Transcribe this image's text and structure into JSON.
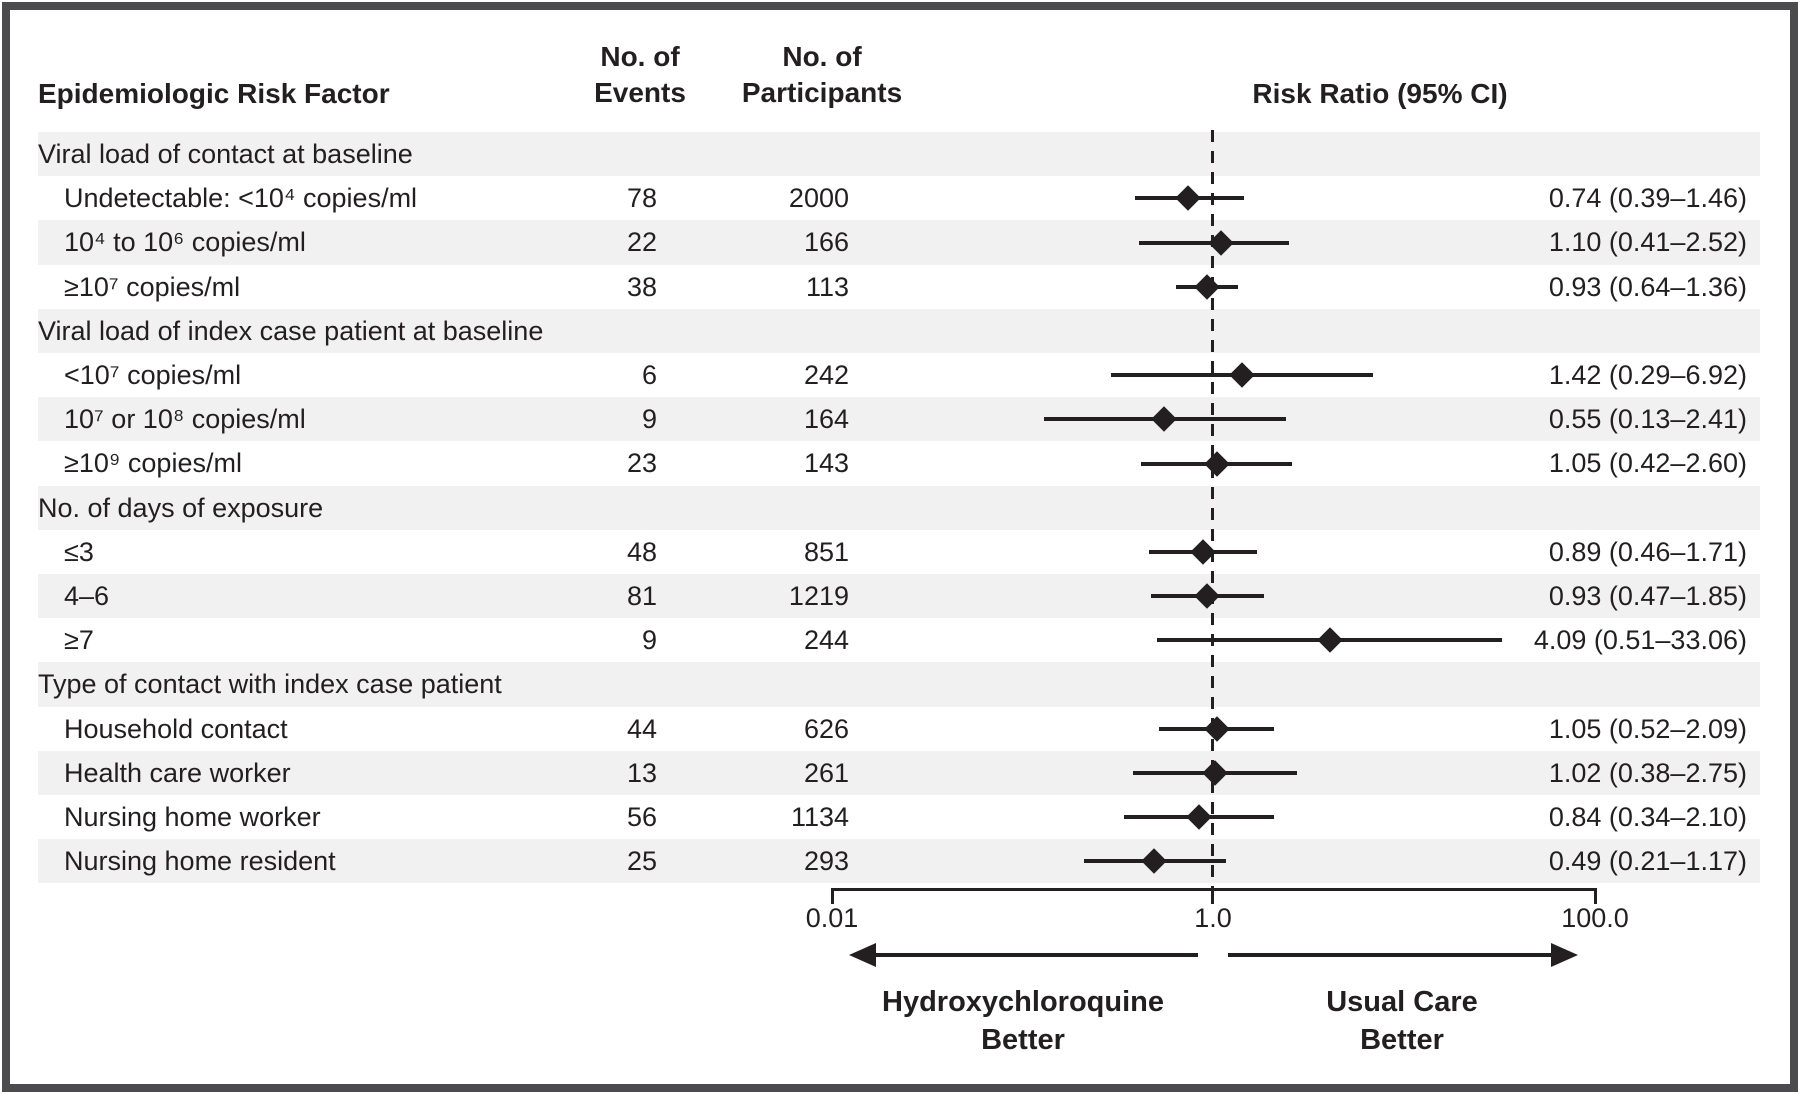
{
  "header": {
    "risk_factor": "Epidemiologic Risk Factor",
    "events_line1": "No. of",
    "events_line2": "Events",
    "participants_line1": "No. of",
    "participants_line2": "Participants",
    "risk_ratio": "Risk Ratio (95% CI)"
  },
  "chart_data": {
    "type": "scatter",
    "variant": "forest-plot",
    "title": "Risk Ratio (95% CI)",
    "x_scale": "log10",
    "xlim": [
      0.01,
      100.0
    ],
    "reference_line": 1.0,
    "x_ticks": [
      0.01,
      1.0,
      100.0
    ],
    "x_tick_labels": [
      "0.01",
      "1.0",
      "100.0"
    ],
    "columns": [
      "Epidemiologic Risk Factor",
      "No. of Events",
      "No. of Participants",
      "Risk Ratio (95% CI)"
    ],
    "rows": [
      {
        "group": true,
        "label": "Viral load of contact at baseline"
      },
      {
        "group": false,
        "label": "Undetectable: <10⁴ copies/ml",
        "events": "78",
        "participants": "2000",
        "rr": 0.74,
        "ci_low": 0.39,
        "ci_high": 1.46,
        "rr_text": "0.74 (0.39–1.46)"
      },
      {
        "group": false,
        "label": "10⁴ to 10⁶ copies/ml",
        "events": "22",
        "participants": "166",
        "rr": 1.1,
        "ci_low": 0.41,
        "ci_high": 2.52,
        "rr_text": "1.10 (0.41–2.52)"
      },
      {
        "group": false,
        "label": "≥10⁷ copies/ml",
        "events": "38",
        "participants": "113",
        "rr": 0.93,
        "ci_low": 0.64,
        "ci_high": 1.36,
        "rr_text": "0.93 (0.64–1.36)"
      },
      {
        "group": true,
        "label": "Viral load of index case patient at baseline"
      },
      {
        "group": false,
        "label": "<10⁷ copies/ml",
        "events": "6",
        "participants": "242",
        "rr": 1.42,
        "ci_low": 0.29,
        "ci_high": 6.92,
        "rr_text": "1.42 (0.29–6.92)"
      },
      {
        "group": false,
        "label": "10⁷ or 10⁸ copies/ml",
        "events": "9",
        "participants": "164",
        "rr": 0.55,
        "ci_low": 0.13,
        "ci_high": 2.41,
        "rr_text": "0.55 (0.13–2.41)"
      },
      {
        "group": false,
        "label": "≥10⁹ copies/ml",
        "events": "23",
        "participants": "143",
        "rr": 1.05,
        "ci_low": 0.42,
        "ci_high": 2.6,
        "rr_text": "1.05 (0.42–2.60)"
      },
      {
        "group": true,
        "label": "No. of days of exposure"
      },
      {
        "group": false,
        "label": "≤3",
        "events": "48",
        "participants": "851",
        "rr": 0.89,
        "ci_low": 0.46,
        "ci_high": 1.71,
        "rr_text": "0.89 (0.46–1.71)"
      },
      {
        "group": false,
        "label": "4–6",
        "events": "81",
        "participants": "1219",
        "rr": 0.93,
        "ci_low": 0.47,
        "ci_high": 1.85,
        "rr_text": "0.93 (0.47–1.85)"
      },
      {
        "group": false,
        "label": "≥7",
        "events": "9",
        "participants": "244",
        "rr": 4.09,
        "ci_low": 0.51,
        "ci_high": 33.06,
        "rr_text": "4.09 (0.51–33.06)"
      },
      {
        "group": true,
        "label": "Type of contact with index case patient"
      },
      {
        "group": false,
        "label": "Household contact",
        "events": "44",
        "participants": "626",
        "rr": 1.05,
        "ci_low": 0.52,
        "ci_high": 2.09,
        "rr_text": "1.05 (0.52–2.09)"
      },
      {
        "group": false,
        "label": "Health care worker",
        "events": "13",
        "participants": "261",
        "rr": 1.02,
        "ci_low": 0.38,
        "ci_high": 2.75,
        "rr_text": "1.02 (0.38–2.75)"
      },
      {
        "group": false,
        "label": "Nursing home worker",
        "events": "56",
        "participants": "1134",
        "rr": 0.84,
        "ci_low": 0.34,
        "ci_high": 2.1,
        "rr_text": "0.84 (0.34–2.10)"
      },
      {
        "group": false,
        "label": "Nursing home resident",
        "events": "25",
        "participants": "293",
        "rr": 0.49,
        "ci_low": 0.21,
        "ci_high": 1.17,
        "rr_text": "0.49 (0.21–1.17)"
      }
    ],
    "legend": "none",
    "grid": "off"
  },
  "footer": {
    "left_label_line1": "Hydroxychloroquine",
    "left_label_line2": "Better",
    "right_label_line1": "Usual Care",
    "right_label_line2": "Better"
  },
  "colors": {
    "text": "#231f20",
    "marker": "#231f20",
    "stripe": "#f1f1f2",
    "frame_border": "#4c4c4e",
    "background": "#ffffff"
  }
}
